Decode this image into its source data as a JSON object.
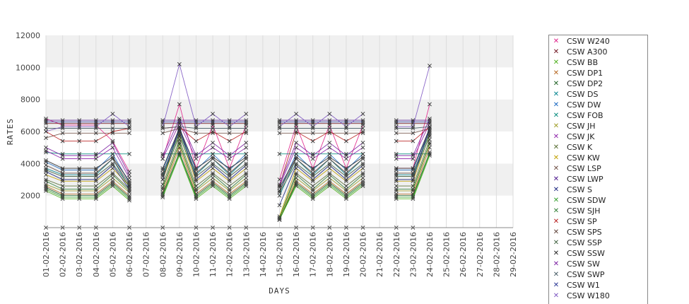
{
  "chart_data": {
    "type": "line",
    "xlabel": "DAYS",
    "ylabel": "RATES",
    "ylim": [
      0,
      12000
    ],
    "yticks": [
      "2000",
      "4000",
      "6000",
      "8000",
      "10000",
      "12000"
    ],
    "grid": "alternating horizontal bands with vertical gridlines",
    "marker": "x",
    "legend_position": "right",
    "categories": [
      "01-02-2016",
      "02-02-2016",
      "03-02-2016",
      "04-02-2016",
      "05-02-2016",
      "06-02-2016",
      "07-02-2016",
      "08-02-2016",
      "09-02-2016",
      "10-02-2016",
      "11-02-2016",
      "12-02-2016",
      "13-02-2016",
      "14-02-2016",
      "15-02-2016",
      "16-02-2016",
      "17-02-2016",
      "18-02-2016",
      "19-02-2016",
      "20-02-2016",
      "21-02-2016",
      "22-02-2016",
      "23-02-2016",
      "24-02-2016",
      "25-02-2016",
      "26-02-2016",
      "27-02-2016",
      "28-02-2016",
      "29-02-2016"
    ],
    "series": [
      {
        "name": "CSW  W240",
        "color": "#e0218a",
        "values": [
          6800,
          6400,
          6400,
          6400,
          5400,
          3500,
          null,
          4300,
          7700,
          3700,
          6400,
          3700,
          6400,
          null,
          3000,
          6400,
          3700,
          6400,
          3700,
          6400,
          null,
          3700,
          3700,
          7700,
          null,
          null,
          null,
          null,
          null
        ]
      },
      {
        "name": "CSW A300",
        "color": "#6b0f1a",
        "values": [
          6500,
          6500,
          6500,
          6500,
          6500,
          6500,
          null,
          6500,
          6500,
          6500,
          6500,
          6500,
          6500,
          null,
          6500,
          6500,
          6500,
          6500,
          6500,
          6500,
          null,
          6500,
          6500,
          6500,
          null,
          null,
          null,
          null,
          null
        ]
      },
      {
        "name": "CSW BB",
        "color": "#4caf1a",
        "values": [
          2300,
          1800,
          1800,
          1800,
          2600,
          1700,
          null,
          1900,
          4500,
          1800,
          2600,
          1800,
          2600,
          null,
          500,
          2600,
          1800,
          2600,
          1800,
          2600,
          null,
          1800,
          1800,
          4500,
          null,
          null,
          null,
          null,
          null
        ]
      },
      {
        "name": "CSW DP1",
        "color": "#b5651d",
        "values": [
          2600,
          2100,
          2100,
          2100,
          2900,
          2000,
          null,
          2200,
          5000,
          2100,
          2900,
          2100,
          2900,
          null,
          500,
          2900,
          2100,
          2900,
          2100,
          2900,
          null,
          2100,
          2100,
          5000,
          null,
          null,
          null,
          null,
          null
        ]
      },
      {
        "name": "CSW DP2",
        "color": "#1b5e20",
        "values": [
          2500,
          2000,
          2000,
          2000,
          2800,
          1900,
          null,
          2100,
          4700,
          2000,
          2800,
          2000,
          2800,
          null,
          500,
          2800,
          2000,
          2800,
          2000,
          2800,
          null,
          2000,
          2000,
          4700,
          null,
          null,
          null,
          null,
          null
        ]
      },
      {
        "name": "CSW DS",
        "color": "#00838f",
        "values": [
          3700,
          3300,
          3300,
          3300,
          4300,
          2500,
          null,
          3300,
          5900,
          3300,
          4300,
          3300,
          4300,
          null,
          2000,
          4300,
          3300,
          4300,
          3300,
          4300,
          null,
          3300,
          3300,
          5900,
          null,
          null,
          null,
          null,
          null
        ]
      },
      {
        "name": "CSW DW",
        "color": "#1565c0",
        "values": [
          4100,
          3600,
          3600,
          3600,
          4600,
          2800,
          null,
          3600,
          6100,
          3600,
          4600,
          3600,
          4600,
          null,
          2300,
          4600,
          3600,
          4600,
          3600,
          4600,
          null,
          3600,
          3600,
          6100,
          null,
          null,
          null,
          null,
          null
        ]
      },
      {
        "name": "CSW FOB",
        "color": "#00897b",
        "values": [
          4700,
          4600,
          4600,
          4600,
          4600,
          4600,
          null,
          4600,
          4600,
          4600,
          4600,
          4600,
          4600,
          null,
          4600,
          4600,
          4600,
          4600,
          4600,
          4600,
          null,
          4600,
          4600,
          4600,
          null,
          null,
          null,
          null,
          null
        ]
      },
      {
        "name": "CSW JH",
        "color": "#9e9d24",
        "values": [
          2700,
          2300,
          2300,
          2300,
          3100,
          2200,
          null,
          2400,
          5200,
          2300,
          3100,
          2300,
          3100,
          null,
          500,
          3100,
          2300,
          3100,
          2300,
          3100,
          null,
          2300,
          2300,
          5200,
          null,
          null,
          null,
          null,
          null
        ]
      },
      {
        "name": "CSW JK",
        "color": "#8e24aa",
        "values": [
          4800,
          4300,
          4300,
          4300,
          5000,
          3100,
          null,
          4300,
          6500,
          4300,
          5000,
          4300,
          5000,
          null,
          2600,
          5000,
          4300,
          5000,
          4300,
          5000,
          null,
          4300,
          4300,
          6500,
          null,
          null,
          null,
          null,
          null
        ]
      },
      {
        "name": "CSW K",
        "color": "#556b2f",
        "values": [
          3000,
          2600,
          2600,
          2600,
          3400,
          2400,
          null,
          2700,
          5500,
          2600,
          3400,
          2600,
          3400,
          null,
          600,
          3400,
          2600,
          3400,
          2600,
          3400,
          null,
          2600,
          2600,
          5500,
          null,
          null,
          null,
          null,
          null
        ]
      },
      {
        "name": "CSW KW",
        "color": "#c0a000",
        "values": [
          3300,
          2900,
          2900,
          2900,
          3700,
          2600,
          null,
          3000,
          5800,
          2900,
          3700,
          2900,
          3700,
          null,
          700,
          3700,
          2900,
          3700,
          2900,
          3700,
          null,
          2900,
          2900,
          5800,
          null,
          null,
          null,
          null,
          null
        ]
      },
      {
        "name": "CSW LSP",
        "color": "#6d4c41",
        "values": [
          5600,
          5900,
          5900,
          5900,
          5900,
          5900,
          null,
          5900,
          6200,
          5900,
          5900,
          5900,
          5900,
          null,
          5900,
          5900,
          5900,
          5900,
          5900,
          5900,
          null,
          5900,
          5900,
          6200,
          null,
          null,
          null,
          null,
          null
        ]
      },
      {
        "name": "CSW LWP",
        "color": "#4a148c",
        "values": [
          6700,
          6700,
          6700,
          6700,
          6700,
          6700,
          null,
          6700,
          6700,
          6700,
          6700,
          6700,
          6700,
          null,
          6700,
          6700,
          6700,
          6700,
          6700,
          6700,
          null,
          6700,
          6700,
          6700,
          null,
          null,
          null,
          null,
          null
        ]
      },
      {
        "name": "CSW S",
        "color": "#1a237e",
        "values": [
          3500,
          3000,
          3000,
          3000,
          3900,
          2400,
          null,
          3000,
          6300,
          3000,
          3900,
          3000,
          3900,
          null,
          1400,
          3900,
          3000,
          3900,
          3000,
          3900,
          null,
          3000,
          3000,
          6300,
          null,
          null,
          null,
          null,
          null
        ]
      },
      {
        "name": "CSW SDW",
        "color": "#33a02c",
        "values": [
          2400,
          1900,
          1900,
          1900,
          2700,
          1800,
          null,
          2000,
          4600,
          1900,
          2700,
          1900,
          2700,
          null,
          500,
          2700,
          1900,
          2700,
          1900,
          2700,
          null,
          1900,
          1900,
          4600,
          null,
          null,
          null,
          null,
          null
        ]
      },
      {
        "name": "CSW SJH",
        "color": "#2e7d32",
        "values": [
          2900,
          2400,
          2400,
          2400,
          3300,
          2300,
          null,
          2500,
          5300,
          2400,
          3300,
          2400,
          3300,
          null,
          600,
          3300,
          2400,
          3300,
          2400,
          3300,
          null,
          2400,
          2400,
          5300,
          null,
          null,
          null,
          null,
          null
        ]
      },
      {
        "name": "CSW SP",
        "color": "#b71c1c",
        "values": [
          6000,
          5400,
          5400,
          5400,
          6000,
          6200,
          null,
          6200,
          6300,
          5400,
          6000,
          5400,
          6000,
          null,
          2600,
          6000,
          5400,
          6000,
          5400,
          6000,
          null,
          5400,
          5400,
          6300,
          null,
          null,
          null,
          null,
          null
        ]
      },
      {
        "name": "CSW SPS",
        "color": "#5d4037",
        "values": [
          3900,
          3400,
          3400,
          3400,
          4300,
          2700,
          null,
          3400,
          6000,
          3400,
          4300,
          3400,
          4300,
          null,
          2300,
          4300,
          3400,
          4300,
          3400,
          4300,
          null,
          3400,
          3400,
          6000,
          null,
          null,
          null,
          null,
          null
        ]
      },
      {
        "name": "CSW SSP",
        "color": "#3e5f3e",
        "values": [
          3600,
          3200,
          3200,
          3200,
          4000,
          2600,
          null,
          3200,
          5700,
          3200,
          4000,
          3200,
          4000,
          null,
          2200,
          4000,
          3200,
          4000,
          3200,
          4000,
          null,
          3200,
          3200,
          5700,
          null,
          null,
          null,
          null,
          null
        ]
      },
      {
        "name": "CSW SSW",
        "color": "#212121",
        "values": [
          4200,
          3700,
          3700,
          3700,
          4400,
          2900,
          null,
          3700,
          6200,
          3700,
          4400,
          3700,
          4400,
          null,
          2500,
          4400,
          3700,
          4400,
          3700,
          4400,
          null,
          3700,
          3700,
          6200,
          null,
          null,
          null,
          null,
          null
        ]
      },
      {
        "name": "CSW SW",
        "color": "#7b1fa2",
        "values": [
          5000,
          4500,
          4500,
          4500,
          5300,
          3300,
          null,
          4500,
          6800,
          4500,
          5300,
          4500,
          5300,
          null,
          2700,
          5300,
          4500,
          5300,
          4500,
          5300,
          null,
          4500,
          4500,
          6800,
          null,
          null,
          null,
          null,
          null
        ]
      },
      {
        "name": "CSW SWP",
        "color": "#455a64",
        "values": [
          6200,
          6200,
          6200,
          6200,
          6200,
          6200,
          null,
          6200,
          6300,
          6200,
          6200,
          6200,
          6200,
          null,
          6200,
          6200,
          6200,
          6200,
          6200,
          6200,
          null,
          6200,
          6200,
          6300,
          null,
          null,
          null,
          null,
          null
        ]
      },
      {
        "name": "CSW W1",
        "color": "#283593",
        "values": [
          6600,
          6600,
          6600,
          6600,
          6600,
          6600,
          null,
          6600,
          6600,
          6600,
          6600,
          6600,
          6600,
          null,
          6600,
          6600,
          6600,
          6600,
          6600,
          6600,
          null,
          6600,
          6600,
          6600,
          null,
          null,
          null,
          null,
          null
        ]
      },
      {
        "name": "CSW W180",
        "color": "#7e57c2",
        "values": [
          6000,
          6300,
          6300,
          6300,
          7100,
          6300,
          null,
          6300,
          10200,
          6300,
          7100,
          6300,
          7100,
          null,
          6300,
          7100,
          6300,
          7100,
          6300,
          7100,
          null,
          6300,
          6300,
          10100,
          null,
          null,
          null,
          null,
          null
        ]
      },
      {
        "name": "",
        "color": "#666666",
        "values": [
          0,
          0,
          0,
          0,
          null,
          0,
          null,
          0,
          null,
          0,
          0,
          0,
          0,
          null,
          null,
          0,
          0,
          0,
          0,
          0,
          null,
          0,
          0,
          null,
          null,
          null,
          null,
          null,
          null
        ]
      }
    ]
  }
}
